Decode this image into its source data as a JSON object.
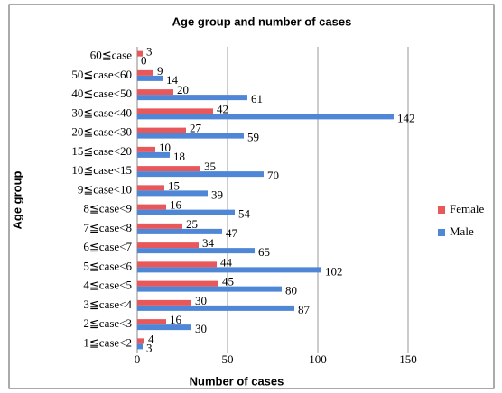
{
  "chart_data": {
    "type": "hbar",
    "title": "Age group and number of  cases",
    "x_label": "Number of cases",
    "y_label": "Age group",
    "categories": [
      "1≦case<2",
      "2≦case<3",
      "3≦case<4",
      "4≦case<5",
      "5≦case<6",
      "6≦case<7",
      "7≦case<8",
      "8≦case<9",
      "9≦case<10",
      "10≦case<15",
      "15≦case<20",
      "20≦case<30",
      "30≦case<40",
      "40≦case<50",
      "50≦case<60",
      "60≦case"
    ],
    "series": [
      {
        "name": "Female",
        "color": "#e8585a",
        "values": [
          4,
          16,
          30,
          45,
          44,
          34,
          25,
          16,
          15,
          35,
          10,
          27,
          42,
          20,
          9,
          3
        ]
      },
      {
        "name": "Male",
        "color": "#4f86d6",
        "values": [
          3,
          30,
          87,
          80,
          102,
          65,
          47,
          54,
          39,
          70,
          18,
          59,
          142,
          61,
          14,
          0
        ]
      }
    ],
    "xlim": [
      0,
      150
    ],
    "xticks": [
      0,
      50,
      100,
      150
    ],
    "grid": true,
    "legend": "right"
  }
}
